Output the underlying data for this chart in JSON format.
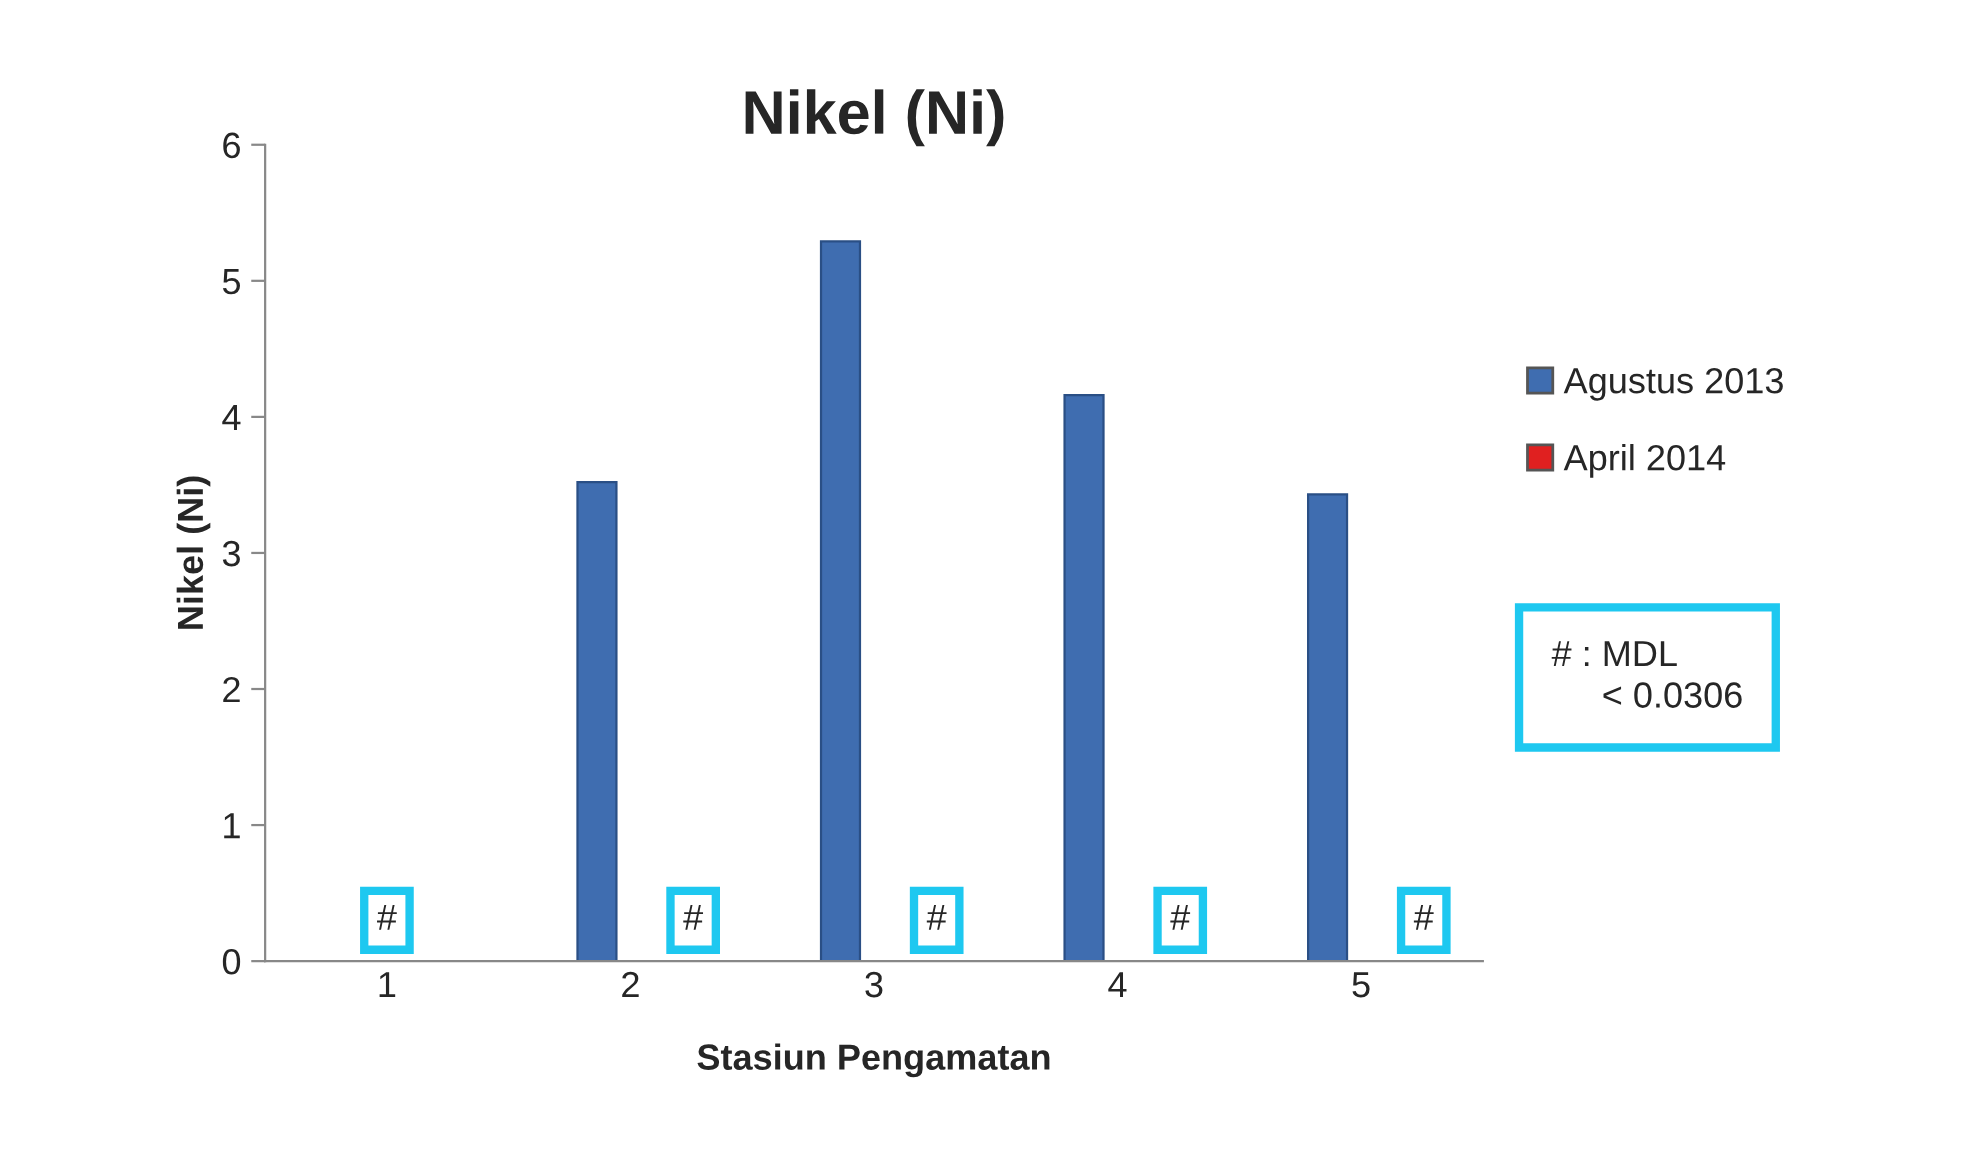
{
  "chart_data": {
    "type": "bar",
    "title": "Nikel (Ni)",
    "xlabel": "Stasiun Pengamatan",
    "ylabel": "Nikel (Ni)",
    "categories": [
      "1",
      "2",
      "3",
      "4",
      "5"
    ],
    "series": [
      {
        "name": "Agustus 2013",
        "color": "#3f6db0",
        "values": [
          null,
          3.52,
          5.29,
          4.16,
          3.43
        ]
      },
      {
        "name": "April 2014",
        "color": "#e02020",
        "values": [
          null,
          null,
          null,
          null,
          null
        ]
      }
    ],
    "ylim": [
      0,
      6
    ],
    "yticks": [
      0,
      1,
      2,
      3,
      4,
      5,
      6
    ],
    "grid": false,
    "legend": "right",
    "annotations": [
      "#",
      "#",
      "#",
      "#",
      "#",
      "# : MDL\n     < 0.0306"
    ]
  }
}
